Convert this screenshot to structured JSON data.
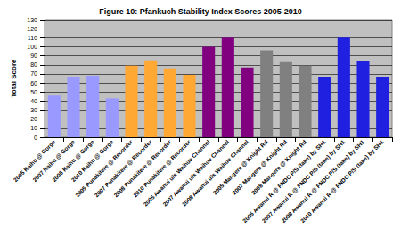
{
  "chart_data": {
    "type": "bar",
    "title": "Figure 10: Pfankuch Stability Index Scores 2005-2010",
    "y_label": "Total Score",
    "categories": [
      "2005 Kaihu @ Gorge",
      "2007 Kaihu @ Gorge",
      "2008 Kaihu @ Gorge",
      "2010 Kaihu @ Gorge",
      "2005 Punakitere @ Recorder",
      "2007 Punakitere @ Recorder",
      "2008 Punakitere @ Recorder",
      "2010 Punakitere @ Recorder",
      "2005 Awanui u/s Waihue Channel",
      "2007 Awanui u/s Waihue Channel",
      "2008 Awanui u/s Waihue Channel",
      "2005 Mangere @ Knight Rd",
      "2007 Mangere @ Knight Rd",
      "2008 Mangere @ Knight Rd",
      "2005 Awanui R @ FNDC P/S (take) by SH1",
      "2007 Awanui R @ FNDC P/S (take) by SH1",
      "2008 Awanui R @ FNDC P/S (take) by SH1",
      "2010 Awanui R @ FNDC P/S (take) by SH1"
    ],
    "values": [
      46,
      67,
      68,
      43,
      79,
      85,
      76,
      69,
      100,
      110,
      77,
      96,
      83,
      79,
      67,
      110,
      84,
      67
    ],
    "colors": [
      "#9999ff",
      "#9999ff",
      "#9999ff",
      "#9999ff",
      "#ffa833",
      "#ffa833",
      "#ffa833",
      "#ffa833",
      "#800080",
      "#800080",
      "#800080",
      "#808080",
      "#808080",
      "#808080",
      "#2020e0",
      "#2020e0",
      "#2020e0",
      "#2020e0"
    ],
    "ylim": [
      0,
      130
    ],
    "yticks": [
      0,
      10,
      20,
      30,
      40,
      50,
      60,
      70,
      80,
      90,
      100,
      110,
      120,
      130
    ],
    "grid": true
  }
}
